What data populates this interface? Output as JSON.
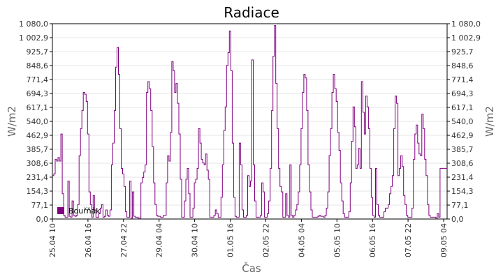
{
  "chart_data": {
    "type": "line",
    "title": "Radiace",
    "xlabel": "Čas",
    "ylabel_left": "W/m2",
    "ylabel_right": "W/m2",
    "ylim": [
      0,
      1080
    ],
    "ytick_labels": [
      "0,0",
      "77,1",
      "154,3",
      "231,4",
      "308,6",
      "385,7",
      "462,9",
      "540,0",
      "617,1",
      "694,3",
      "771,4",
      "848,6",
      "925,7",
      "1 002,9",
      "1 080,0"
    ],
    "xtick_labels": [
      "25.04 10",
      "26.04 16",
      "27.04 22",
      "29.04 04",
      "30.04 10",
      "01.05 16",
      "02.05 22",
      "04.05 04",
      "05.05 10",
      "06.05 16",
      "07.05 22",
      "09.05 04"
    ],
    "grid": true,
    "legend_position": "bottom-left",
    "colors": {
      "series": "#800080",
      "grid": "#e6e6e6",
      "axis": "#000000"
    },
    "series": [
      {
        "name": "Bouřňák",
        "x_step_hours": 1,
        "values": [
          240,
          250,
          330,
          320,
          340,
          320,
          470,
          140,
          20,
          10,
          10,
          210,
          15,
          10,
          100,
          20,
          15,
          20,
          80,
          350,
          500,
          600,
          700,
          690,
          650,
          470,
          150,
          80,
          10,
          130,
          50,
          10,
          10,
          30,
          60,
          80,
          10,
          15,
          50,
          20,
          15,
          50,
          300,
          420,
          600,
          840,
          950,
          800,
          500,
          280,
          250,
          180,
          40,
          10,
          10,
          210,
          5,
          150,
          15,
          10,
          10,
          5,
          5,
          200,
          230,
          260,
          300,
          700,
          760,
          720,
          600,
          400,
          200,
          80,
          20,
          15,
          15,
          10,
          10,
          20,
          20,
          200,
          350,
          320,
          480,
          870,
          820,
          700,
          750,
          640,
          470,
          220,
          10,
          10,
          100,
          220,
          280,
          140,
          10,
          10,
          60,
          200,
          220,
          280,
          500,
          420,
          330,
          310,
          300,
          360,
          270,
          220,
          10,
          10,
          10,
          20,
          50,
          30,
          10,
          10,
          120,
          300,
          490,
          620,
          850,
          920,
          1040,
          820,
          420,
          120,
          15,
          10,
          10,
          420,
          300,
          50,
          10,
          10,
          20,
          240,
          180,
          210,
          880,
          300,
          100,
          10,
          10,
          10,
          20,
          200,
          150,
          10,
          10,
          30,
          100,
          280,
          600,
          900,
          1070,
          750,
          500,
          280,
          180,
          150,
          10,
          10,
          140,
          20,
          10,
          300,
          20,
          10,
          20,
          50,
          80,
          150,
          300,
          500,
          700,
          800,
          780,
          600,
          300,
          150,
          50,
          10,
          10,
          10,
          10,
          15,
          20,
          15,
          15,
          10,
          20,
          60,
          150,
          350,
          500,
          700,
          800,
          720,
          650,
          480,
          380,
          200,
          100,
          30,
          10,
          10,
          10,
          40,
          200,
          430,
          620,
          510,
          280,
          300,
          390,
          280,
          760,
          590,
          470,
          680,
          620,
          500,
          280,
          120,
          20,
          10,
          280,
          80,
          20,
          10,
          10,
          10,
          40,
          60,
          60,
          80,
          140,
          180,
          240,
          500,
          680,
          640,
          240,
          280,
          350,
          290,
          130,
          80,
          20,
          10,
          10,
          10,
          60,
          330,
          470,
          520,
          420,
          360,
          350,
          580,
          500,
          330,
          240,
          80,
          20,
          10,
          10,
          10,
          10,
          5,
          30,
          10,
          280,
          280,
          280,
          280,
          280,
          280
        ]
      }
    ]
  }
}
